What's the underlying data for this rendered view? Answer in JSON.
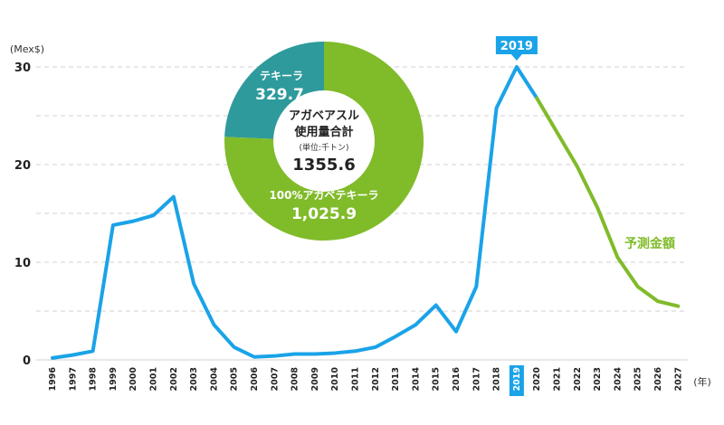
{
  "chart_data": [
    {
      "type": "line",
      "y_unit": "(Mex$)",
      "x_unit": "(年)",
      "x": [
        "1996",
        "1997",
        "1998",
        "1999",
        "2000",
        "2001",
        "2002",
        "2003",
        "2004",
        "2005",
        "2006",
        "2007",
        "2008",
        "2009",
        "2010",
        "2011",
        "2012",
        "2013",
        "2014",
        "2015",
        "2016",
        "2017",
        "2018",
        "2019",
        "2020",
        "2021",
        "2022",
        "2023",
        "2024",
        "2025",
        "2026",
        "2027"
      ],
      "highlight_x": "2019",
      "highlight_label": "2019",
      "ylim": [
        0,
        32
      ],
      "yticks": [
        0,
        10,
        20,
        30
      ],
      "grid": "dashed-horizontal",
      "series": [
        {
          "color": "#1aa3e8",
          "x": [
            "1996",
            "1997",
            "1998",
            "1999",
            "2000",
            "2001",
            "2002",
            "2003",
            "2004",
            "2005",
            "2006",
            "2007",
            "2008",
            "2009",
            "2010",
            "2011",
            "2012",
            "2013",
            "2014",
            "2015",
            "2016",
            "2017",
            "2018",
            "2019",
            "2020"
          ],
          "values": [
            0.2,
            0.5,
            0.9,
            13.8,
            14.2,
            14.8,
            16.7,
            7.8,
            3.6,
            1.3,
            0.3,
            0.4,
            0.6,
            0.6,
            0.7,
            0.9,
            1.3,
            2.4,
            3.6,
            5.6,
            2.9,
            7.5,
            25.8,
            30.0,
            26.8
          ]
        },
        {
          "name": "予測金額",
          "color": "#80bb2a",
          "x": [
            "2020",
            "2021",
            "2022",
            "2023",
            "2024",
            "2025",
            "2026",
            "2027"
          ],
          "values": [
            26.8,
            23.3,
            19.8,
            15.6,
            10.5,
            7.5,
            6.0,
            5.5
          ]
        }
      ]
    },
    {
      "type": "pie",
      "style": "donut",
      "center": {
        "title_line1": "アガベアスル",
        "title_line2": "使用量合計",
        "unit": "(単位:千トン)",
        "total": "1355.6"
      },
      "slices": [
        {
          "label": "テキーラ",
          "value": 329.7,
          "value_label": "329.7",
          "color": "#2e9a9c"
        },
        {
          "label": "100%アガベテキーラ",
          "value": 1025.9,
          "value_label": "1,025.9",
          "color": "#80bb2a"
        }
      ]
    }
  ]
}
